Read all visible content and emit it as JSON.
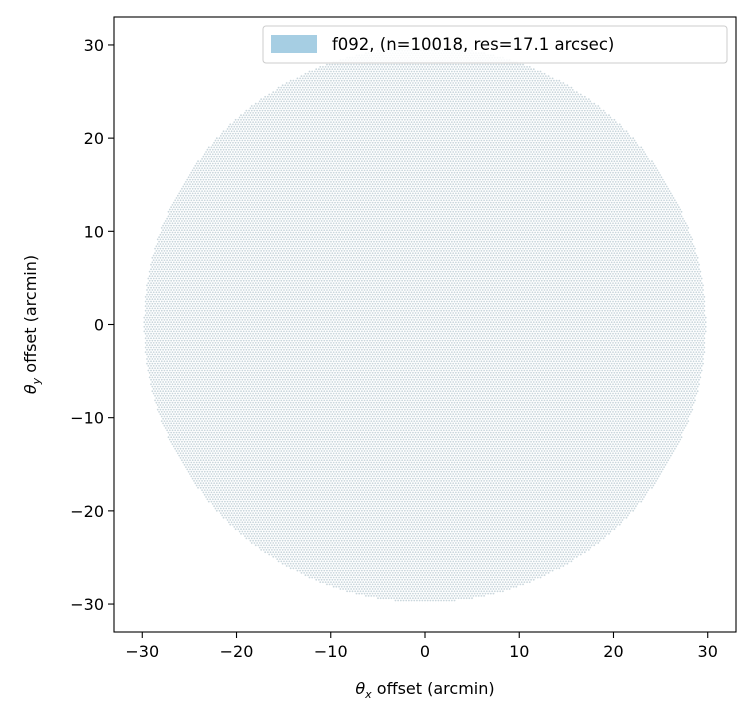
{
  "chart_data": {
    "type": "scatter",
    "title": "",
    "xlabel_symbol": "θ",
    "xlabel_sub": "x",
    "xlabel_rest": " offset (arcmin)",
    "ylabel_symbol": "θ",
    "ylabel_sub": "y",
    "ylabel_rest": " offset (arcmin)",
    "xlim": [
      -33,
      33
    ],
    "ylim": [
      -33,
      33
    ],
    "xticks": [
      -30,
      -20,
      -10,
      0,
      10,
      20,
      30
    ],
    "yticks": [
      -30,
      -20,
      -10,
      0,
      10,
      20,
      30
    ],
    "xtick_labels": [
      "−30",
      "−20",
      "−10",
      "0",
      "10",
      "20",
      "30"
    ],
    "ytick_labels": [
      "−30",
      "−20",
      "−10",
      "0",
      "10",
      "20",
      "30"
    ],
    "grid": false,
    "legend_position": "top-right",
    "series": [
      {
        "name": "f092, (n=10018, res=17.1 arcsec)",
        "color": "#a6cee3",
        "marker_color": "#c9d6dc",
        "pattern": "hexagonal grid of points clipped to a circle",
        "center": [
          0,
          0
        ],
        "radius": 29.8,
        "count": 10018,
        "spacing_arcsec": 17.1
      }
    ]
  }
}
